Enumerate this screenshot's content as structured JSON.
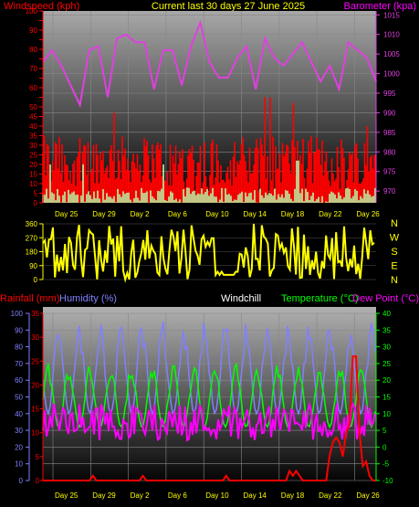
{
  "header": {
    "left": "Windspeed (kph)",
    "center": "Current last 30 days 27 June 2025",
    "right": "Barometer (kpa)"
  },
  "mid_header": {
    "rain": "Rainfall (mm)",
    "humidity": "Humidity (%)",
    "windchill": "Windchill",
    "temperature": "Temperature (°C)",
    "dewpoint": "Dew Point (°C)"
  },
  "colors": {
    "wind": "#ff0000",
    "gust": "#ff0000",
    "average_wind": "#b8f8a8",
    "barometer": "#e040e0",
    "direction": "#ffff00",
    "rain": "#ff0000",
    "humidity": "#8080ff",
    "temperature": "#00ff00",
    "dewpoint": "#ff00ff"
  },
  "chart_data": [
    {
      "type": "area",
      "panel": "wind",
      "x_tick_labels": [
        "Day 25",
        "Day 29",
        "Day 2",
        "Day 6",
        "Day 10",
        "Day 14",
        "Day 18",
        "Day 22",
        "Day 26"
      ],
      "left_axis": {
        "label": "Windspeed (kph)",
        "range": [
          0,
          100
        ],
        "ticks": [
          0,
          5,
          10,
          15,
          20,
          25,
          30,
          35,
          40,
          45,
          50,
          55,
          60,
          65,
          70,
          75,
          80,
          85,
          90,
          95,
          100
        ],
        "tick_labels_shown": [
          0,
          5,
          10,
          15,
          20,
          25,
          30,
          35,
          40,
          45,
          50,
          60,
          70,
          80,
          90,
          100
        ]
      },
      "right_axis": {
        "label": "Barometer (kpa)",
        "range": [
          967,
          1016
        ],
        "tick_labels": [
          970,
          975,
          980,
          985,
          990,
          995,
          1000,
          1005,
          1010,
          1015
        ]
      },
      "series": [
        {
          "name": "Windspeed (kph)",
          "kind": "gust",
          "summary": {
            "typical_min": 10,
            "typical_max": 35,
            "peaks": [
              40,
              55,
              47,
              52
            ]
          }
        },
        {
          "name": "",
          "kind": "average_wind",
          "summary": {
            "typical_min": 0,
            "typical_max": 8,
            "peaks": [
              20,
              15,
              22
            ]
          }
        },
        {
          "name": "Barometer (kpa)",
          "points": [
            [
              0,
              1003
            ],
            [
              1,
              1006
            ],
            [
              2,
              1002
            ],
            [
              3,
              997
            ],
            [
              4,
              992
            ],
            [
              5,
              1006
            ],
            [
              6,
              1007
            ],
            [
              7,
              994
            ],
            [
              8,
              1009
            ],
            [
              9,
              1010
            ],
            [
              10,
              1008
            ],
            [
              11,
              1008
            ],
            [
              12,
              996
            ],
            [
              13,
              1006
            ],
            [
              14,
              1006
            ],
            [
              15,
              997
            ],
            [
              16,
              1007
            ],
            [
              17,
              1013
            ],
            [
              18,
              1003
            ],
            [
              19,
              999
            ],
            [
              20,
              999
            ],
            [
              21,
              1004
            ],
            [
              22,
              1007
            ],
            [
              23,
              996
            ],
            [
              24,
              1009
            ],
            [
              25,
              1004
            ],
            [
              26,
              1002
            ],
            [
              27,
              1005
            ],
            [
              28,
              1008
            ],
            [
              29,
              1003
            ],
            [
              30,
              998
            ],
            [
              31,
              1002
            ],
            [
              32,
              996
            ],
            [
              33,
              1008
            ],
            [
              34,
              1006
            ],
            [
              35,
              1004
            ],
            [
              36,
              998
            ]
          ]
        }
      ]
    },
    {
      "type": "line",
      "panel": "wind_direction",
      "left_axis": {
        "range": [
          0,
          360
        ],
        "ticks": [
          0,
          90,
          180,
          270,
          360
        ]
      },
      "right_axis": {
        "labels": [
          "N",
          "W",
          "S",
          "E",
          "N"
        ]
      },
      "series": [
        {
          "name": "",
          "kind": "direction",
          "summary": {
            "range": [
              0,
              360
            ],
            "steady_section_value": 30
          }
        }
      ]
    },
    {
      "type": "line",
      "panel": "temperature",
      "x_tick_labels": [
        "Day 25",
        "Day 29",
        "Day 2",
        "Day 6",
        "Day 10",
        "Day 14",
        "Day 18",
        "Day 22",
        "Day 26"
      ],
      "left_axis_humidity": {
        "label": "Humidity (%)",
        "range": [
          0,
          100
        ],
        "ticks": [
          0,
          10,
          20,
          30,
          40,
          50,
          60,
          70,
          80,
          90,
          100
        ]
      },
      "left_axis_rain": {
        "label": "Rainfall (mm)",
        "range": [
          0,
          35
        ],
        "ticks": [
          0,
          5,
          10,
          15,
          20,
          25,
          30,
          35
        ]
      },
      "right_axis": {
        "label": "Temperature (°C)",
        "range": [
          -10,
          40
        ],
        "ticks": [
          -10,
          -5,
          0,
          5,
          10,
          15,
          20,
          25,
          30,
          35,
          40
        ]
      },
      "series": [
        {
          "name": "Humidity (%)",
          "axis": "humidity",
          "summary": {
            "min": 40,
            "max": 96
          }
        },
        {
          "name": "Temperature (°C)",
          "axis": "temperature",
          "summary": {
            "min": 2,
            "max": 27
          }
        },
        {
          "name": "Dew Point (°C)",
          "axis": "temperature",
          "summary": {
            "min": -1,
            "max": 14
          }
        },
        {
          "name": "Rainfall (mm)",
          "axis": "rain",
          "points": [
            [
              0,
              0
            ],
            [
              14,
              0
            ],
            [
              15,
              1
            ],
            [
              16,
              0
            ],
            [
              29,
              0
            ],
            [
              30,
              1
            ],
            [
              31,
              0
            ],
            [
              54,
              0
            ],
            [
              55,
              1
            ],
            [
              56,
              0
            ],
            [
              73,
              0
            ],
            [
              74,
              2
            ],
            [
              75,
              1
            ],
            [
              76,
              2
            ],
            [
              78,
              0
            ],
            [
              85,
              0
            ],
            [
              86,
              5
            ],
            [
              87,
              8
            ],
            [
              88,
              9
            ],
            [
              89,
              8
            ],
            [
              90,
              5
            ],
            [
              91,
              10
            ],
            [
              92,
              12
            ],
            [
              93,
              26
            ],
            [
              94,
              26
            ],
            [
              95,
              10
            ],
            [
              96,
              3
            ],
            [
              97,
              4
            ],
            [
              98,
              1
            ],
            [
              99,
              0
            ],
            [
              100,
              0
            ]
          ]
        }
      ]
    }
  ]
}
